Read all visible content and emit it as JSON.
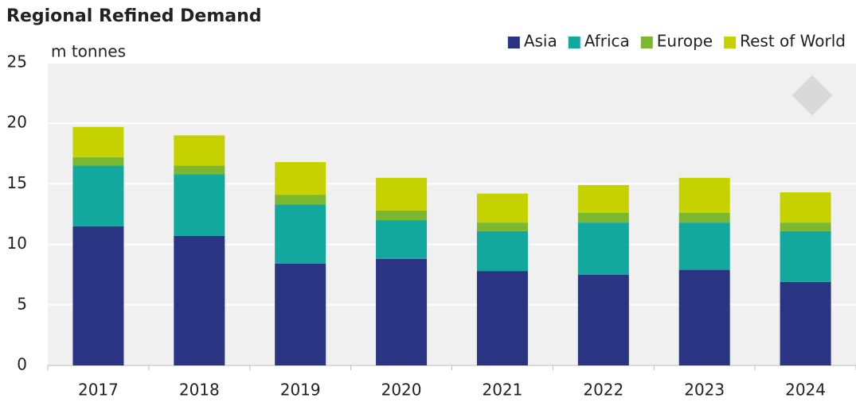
{
  "chart_data": {
    "type": "stacked_bar",
    "title": "Regional Refined Demand",
    "y_label": "m tonnes",
    "categories": [
      "2017",
      "2018",
      "2019",
      "2020",
      "2021",
      "2022",
      "2023",
      "2024"
    ],
    "series": [
      {
        "name": "Asia",
        "color": "#293583",
        "values": [
          11.5,
          10.7,
          8.4,
          8.8,
          7.8,
          7.5,
          7.9,
          6.9
        ]
      },
      {
        "name": "Africa",
        "color": "#12a89d",
        "values": [
          5.0,
          5.1,
          4.9,
          3.2,
          3.3,
          4.3,
          3.9,
          4.2
        ]
      },
      {
        "name": "Europe",
        "color": "#7cb82f",
        "values": [
          0.7,
          0.7,
          0.8,
          0.8,
          0.7,
          0.8,
          0.8,
          0.7
        ]
      },
      {
        "name": "Rest of World",
        "color": "#c6d200",
        "values": [
          2.5,
          2.5,
          2.7,
          2.7,
          2.4,
          2.3,
          2.9,
          2.5
        ]
      }
    ],
    "ylim": [
      0,
      25
    ],
    "yticks": [
      0,
      5,
      10,
      15,
      20,
      25
    ],
    "grid": true,
    "legend": "top-right"
  }
}
